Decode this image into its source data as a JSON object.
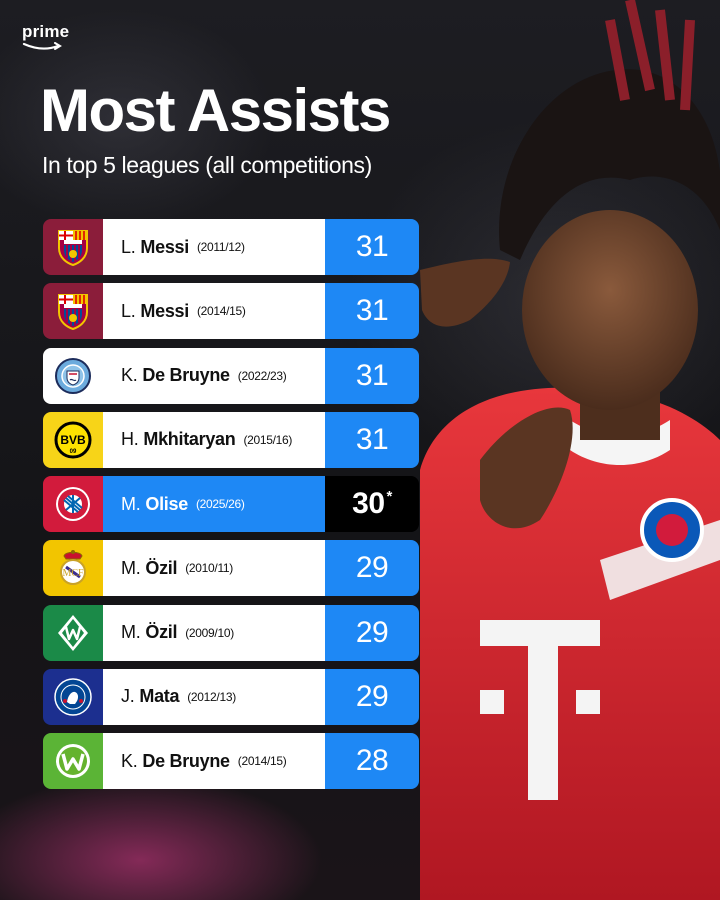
{
  "brand": {
    "name": "prime"
  },
  "header": {
    "title": "Most Assists",
    "subtitle": "In top 5 leagues (all competitions)"
  },
  "colors": {
    "accent_blue": "#1e88f5",
    "highlight_value_bg": "#000000",
    "barcelona": "#8b1d3a",
    "man_city": "#ffffff",
    "dortmund": "#f7d418",
    "bayern": "#d21b3c",
    "real_madrid": "#f2c500",
    "werder": "#1b8a48",
    "chelsea": "#1c2f8f",
    "wolfsburg": "#5bb436"
  },
  "rows": [
    {
      "initial": "L.",
      "surname": "Messi",
      "season": "(2011/12)",
      "value": "31",
      "club_icon": "barcelona-crest-icon",
      "note": ""
    },
    {
      "initial": "L.",
      "surname": "Messi",
      "season": "(2014/15)",
      "value": "31",
      "club_icon": "barcelona-crest-icon",
      "note": ""
    },
    {
      "initial": "K.",
      "surname": "De Bruyne",
      "season": "(2022/23)",
      "value": "31",
      "club_icon": "man-city-crest-icon",
      "note": ""
    },
    {
      "initial": "H.",
      "surname": "Mkhitaryan",
      "season": "(2015/16)",
      "value": "31",
      "club_icon": "dortmund-crest-icon",
      "note": ""
    },
    {
      "initial": "M.",
      "surname": "Olise",
      "season": "(2025/26)",
      "value": "30",
      "club_icon": "bayern-crest-icon",
      "note": "*"
    },
    {
      "initial": "M.",
      "surname": "Özil",
      "season": "(2010/11)",
      "value": "29",
      "club_icon": "real-madrid-crest-icon",
      "note": ""
    },
    {
      "initial": "M.",
      "surname": "Özil",
      "season": "(2009/10)",
      "value": "29",
      "club_icon": "werder-bremen-crest-icon",
      "note": ""
    },
    {
      "initial": "J.",
      "surname": "Mata",
      "season": "(2012/13)",
      "value": "29",
      "club_icon": "chelsea-crest-icon",
      "note": ""
    },
    {
      "initial": "K.",
      "surname": "De Bruyne",
      "season": "(2014/15)",
      "value": "28",
      "club_icon": "wolfsburg-crest-icon",
      "note": ""
    }
  ],
  "crest_text": {
    "barcelona": "FCB",
    "dortmund": "BVB",
    "dortmund_year": "09",
    "chelsea": "CHELSEA",
    "wolfsburg": "W",
    "werder": "W"
  }
}
